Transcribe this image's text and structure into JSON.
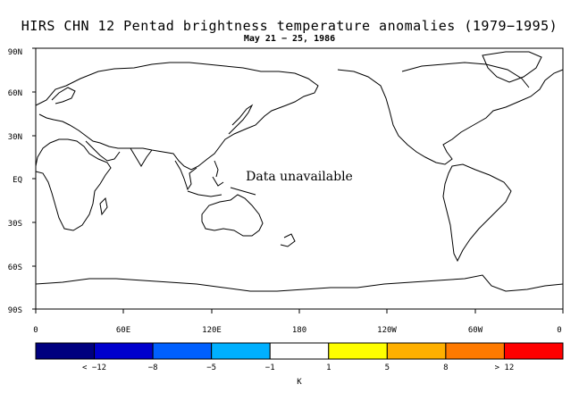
{
  "title": "HIRS CHN 12 Pentad brightness temperature anomalies (1979−1995)",
  "subtitle": "May 21 − 25, 1986",
  "message": "Data unavailable",
  "lat_labels": [
    "90N",
    "60N",
    "30N",
    "EQ",
    "30S",
    "60S",
    "90S"
  ],
  "lon_labels": [
    "0",
    "60E",
    "120E",
    "180",
    "120W",
    "60W",
    "0"
  ],
  "colorbar": {
    "colors": [
      "#00007f",
      "#0000cd",
      "#0060ff",
      "#00b0ff",
      "#ffffff",
      "#ffff00",
      "#ffb000",
      "#ff7a00",
      "#ff0000"
    ],
    "labels": [
      "< −12",
      "−8",
      "−5",
      "−1",
      "1",
      "5",
      "8",
      "> 12"
    ],
    "unit": "K"
  }
}
